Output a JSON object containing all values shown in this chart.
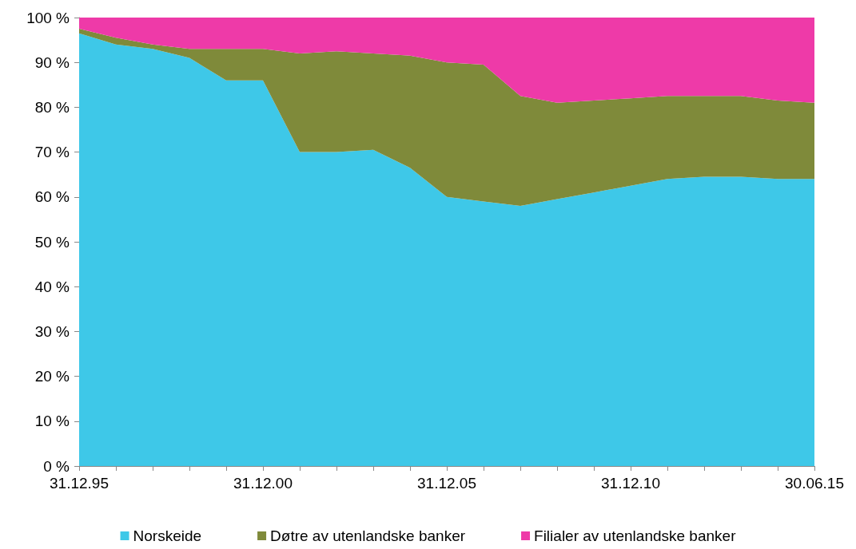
{
  "chart_data": {
    "type": "area",
    "stacked": true,
    "categories": [
      "31.12.95",
      null,
      null,
      null,
      null,
      "31.12.00",
      null,
      null,
      null,
      null,
      "31.12.05",
      null,
      null,
      null,
      null,
      "31.12.10",
      null,
      null,
      null,
      null,
      "30.06.15"
    ],
    "series": [
      {
        "name": "Norskeide",
        "color": "#3ec8e8",
        "values": [
          96.5,
          94,
          93,
          91,
          86,
          86,
          70,
          70,
          70.5,
          66.5,
          60,
          59,
          58,
          59.5,
          61,
          62.5,
          64,
          64.5,
          64.5,
          64,
          64
        ]
      },
      {
        "name": "Døtre av utenlandske banker",
        "color": "#7f8a3a",
        "values": [
          1,
          1.5,
          1,
          2,
          7,
          7,
          22,
          22.5,
          21.5,
          25,
          30,
          30.5,
          24.5,
          21.5,
          20.5,
          19.5,
          18.5,
          18,
          18,
          17.5,
          17
        ]
      },
      {
        "name": "Filialer av utenlandske banker",
        "color": "#ee3aa8",
        "values": [
          2.5,
          4.5,
          6,
          7,
          7,
          7,
          8,
          7.5,
          8,
          8.5,
          10,
          10.5,
          17.5,
          19,
          18.5,
          18,
          17.5,
          17.5,
          17.5,
          18.5,
          19
        ]
      }
    ],
    "ylim": [
      0,
      100
    ],
    "yticks": [
      {
        "value": 0,
        "label": "0 %"
      },
      {
        "value": 10,
        "label": "10 %"
      },
      {
        "value": 20,
        "label": "20 %"
      },
      {
        "value": 30,
        "label": "30 %"
      },
      {
        "value": 40,
        "label": "40 %"
      },
      {
        "value": 50,
        "label": "50 %"
      },
      {
        "value": 60,
        "label": "60 %"
      },
      {
        "value": 70,
        "label": "70 %"
      },
      {
        "value": 80,
        "label": "80 %"
      },
      {
        "value": 90,
        "label": "90 %"
      },
      {
        "value": 100,
        "label": "100 %"
      }
    ],
    "grid": false,
    "legend": "bottom",
    "marker": "none"
  }
}
